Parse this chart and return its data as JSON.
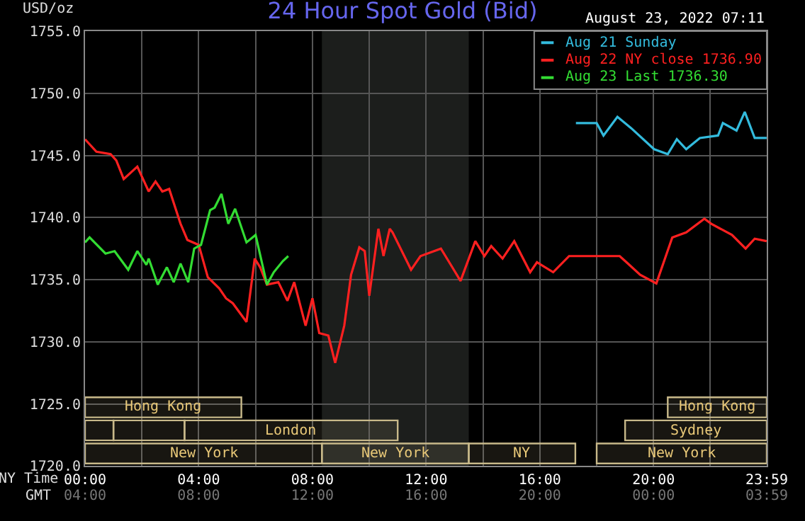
{
  "chart_data": {
    "type": "line",
    "title": "24 Hour Spot Gold (Bid)",
    "subtitle": "August 23, 2022 07:11",
    "ylabel": "USD/oz",
    "xlabel": "NY Time",
    "x2label": "GMT",
    "xlim": [
      0,
      23.983
    ],
    "ylim": [
      1720,
      1755
    ],
    "xticks": [
      {
        "value": 0,
        "label": "00:00"
      },
      {
        "value": 2,
        "label": null
      },
      {
        "value": 4,
        "label": "04:00"
      },
      {
        "value": 6,
        "label": null
      },
      {
        "value": 8,
        "label": "08:00"
      },
      {
        "value": 10,
        "label": null
      },
      {
        "value": 12,
        "label": "12:00"
      },
      {
        "value": 14,
        "label": null
      },
      {
        "value": 16,
        "label": "16:00"
      },
      {
        "value": 18,
        "label": null
      },
      {
        "value": 20,
        "label": "20:00"
      },
      {
        "value": 22,
        "label": null
      },
      {
        "value": 23.983,
        "label": "23:59"
      }
    ],
    "x2lim": [
      "2022-08-23T04:00",
      "2022-08-24T03:59"
    ],
    "x2ticks": [
      {
        "value": "2022-08-23T04:00",
        "label": "04:00"
      },
      {
        "value": "2022-08-23T08:00",
        "label": "08:00"
      },
      {
        "value": "2022-08-23T12:00",
        "label": "12:00"
      },
      {
        "value": "2022-08-23T16:00",
        "label": "16:00"
      },
      {
        "value": "2022-08-23T20:00",
        "label": "20:00"
      },
      {
        "value": "2022-08-24T00:00",
        "label": "00:00"
      },
      {
        "value": "2022-08-24T03:59",
        "label": "03:59"
      }
    ],
    "yticks": [
      {
        "value": 1720,
        "label": "1720.0"
      },
      {
        "value": 1725,
        "label": "1725.0"
      },
      {
        "value": 1730,
        "label": "1730.0"
      },
      {
        "value": 1735,
        "label": "1735.0"
      },
      {
        "value": 1740,
        "label": "1740.0"
      },
      {
        "value": 1745,
        "label": "1745.0"
      },
      {
        "value": 1750,
        "label": "1750.0"
      },
      {
        "value": 1755,
        "label": "1755.0"
      }
    ],
    "grid": true,
    "legend": "top right",
    "marker": "none",
    "line_style": "solid",
    "series": [
      {
        "name": "Aug 21 Sunday",
        "color": "#33bbdd",
        "x": [
          17.27,
          18.0,
          18.24,
          18.73,
          19.21,
          20.02,
          20.5,
          20.82,
          21.15,
          21.63,
          22.27,
          22.44,
          22.92,
          23.21,
          23.56,
          23.98
        ],
        "values": [
          1747.6,
          1747.6,
          1746.6,
          1748.1,
          1747.2,
          1745.5,
          1745.1,
          1746.3,
          1745.5,
          1746.4,
          1746.6,
          1747.6,
          1747.0,
          1748.5,
          1746.4,
          1746.4
        ]
      },
      {
        "name": "Aug 22 NY close 1736.90",
        "color": "#ff2020",
        "x": [
          0,
          0.4,
          0.9,
          1.1,
          1.36,
          1.84,
          2.24,
          2.48,
          2.72,
          2.96,
          3.36,
          3.6,
          4.0,
          4.32,
          4.72,
          4.96,
          5.2,
          5.68,
          5.97,
          6.16,
          6.4,
          6.8,
          7.12,
          7.36,
          7.76,
          8.0,
          8.24,
          8.56,
          8.8,
          9.12,
          9.36,
          9.65,
          9.84,
          10.0,
          10.32,
          10.5,
          10.72,
          10.82,
          11.47,
          11.8,
          12.52,
          12.92,
          13.21,
          13.73,
          14.05,
          14.29,
          14.69,
          15.1,
          15.66,
          15.9,
          16.47,
          17.03,
          18.81,
          19.05,
          19.53,
          20.1,
          20.66,
          21.15,
          21.79,
          22.03,
          22.76,
          23.24,
          23.56,
          23.98
        ],
        "values": [
          1746.3,
          1745.3,
          1745.1,
          1744.6,
          1743.1,
          1744.1,
          1742.1,
          1742.9,
          1742.1,
          1742.3,
          1739.5,
          1738.2,
          1737.8,
          1735.2,
          1734.3,
          1733.5,
          1733.1,
          1731.6,
          1736.7,
          1736.0,
          1734.6,
          1734.8,
          1733.3,
          1734.8,
          1731.3,
          1733.5,
          1730.7,
          1730.5,
          1728.3,
          1731.3,
          1735.4,
          1737.6,
          1737.3,
          1733.7,
          1739.1,
          1736.9,
          1739.1,
          1738.8,
          1735.8,
          1736.9,
          1737.5,
          1736.0,
          1734.9,
          1738.1,
          1736.9,
          1737.7,
          1736.7,
          1738.1,
          1735.6,
          1736.4,
          1735.6,
          1736.9,
          1736.9,
          1736.4,
          1735.4,
          1734.7,
          1738.4,
          1738.8,
          1739.9,
          1739.5,
          1738.6,
          1737.5,
          1738.3,
          1738.1
        ]
      },
      {
        "name": "Aug 23 Last 1736.30",
        "color": "#33dd33",
        "x": [
          0,
          0.16,
          0.72,
          1.04,
          1.52,
          1.84,
          2.16,
          2.24,
          2.56,
          2.88,
          3.12,
          3.36,
          3.63,
          3.84,
          4.08,
          4.4,
          4.56,
          4.8,
          5.04,
          5.28,
          5.68,
          6.0,
          6.4,
          6.64,
          6.96,
          7.15
        ],
        "values": [
          1738.0,
          1738.4,
          1737.1,
          1737.3,
          1735.8,
          1737.3,
          1736.2,
          1736.7,
          1734.6,
          1736.0,
          1734.8,
          1736.3,
          1734.8,
          1737.5,
          1737.8,
          1740.6,
          1740.8,
          1741.9,
          1739.5,
          1740.7,
          1738.0,
          1738.6,
          1734.6,
          1735.6,
          1736.5,
          1736.9
        ]
      }
    ],
    "bands": [
      {
        "axis": "x",
        "from": 8.333,
        "to": 13.5,
        "color": "#1c1e1c"
      },
      {
        "axis": "x",
        "from": 0,
        "to": 8.333,
        "label": "New York",
        "color": "#c8b98a"
      },
      {
        "axis": "x",
        "from": 8.333,
        "to": 13.5,
        "label": "New York",
        "color": "#c8b98a"
      },
      {
        "axis": "x",
        "from": 13.5,
        "to": 17.25,
        "label": "NY",
        "color": "#c8b98a"
      },
      {
        "axis": "x",
        "from": 18,
        "to": 23.983,
        "label": "New York",
        "color": "#c8b98a"
      },
      {
        "axis": "x",
        "from": 0,
        "to": 1,
        "label": null,
        "color": "#c8b98a"
      },
      {
        "axis": "x",
        "from": 1,
        "to": 3.5,
        "label": null,
        "color": "#c8b98a"
      },
      {
        "axis": "x",
        "from": 3.5,
        "to": 11,
        "label": "London",
        "color": "#c8b98a"
      },
      {
        "axis": "x",
        "from": 19,
        "to": 23.983,
        "label": "Sydney",
        "color": "#c8b98a"
      },
      {
        "axis": "x",
        "from": 0,
        "to": 5.5,
        "label": "Hong Kong",
        "color": "#c8b98a"
      },
      {
        "axis": "x",
        "from": 20.5,
        "to": 23.983,
        "label": "Hong Kong",
        "color": "#c8b98a"
      }
    ]
  }
}
